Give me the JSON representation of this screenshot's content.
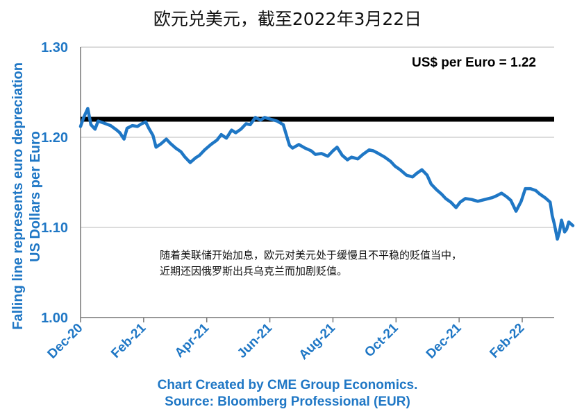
{
  "chart_data": {
    "type": "line",
    "title": "欧元兑美元，截至2022年3月22日",
    "ylabel": [
      "US Dollars per Euro",
      "Falling line represents euro depreciation"
    ],
    "xlabel": "",
    "ylim": [
      1.0,
      1.3
    ],
    "yticks": [
      "1.00",
      "1.10",
      "1.20",
      "1.30"
    ],
    "xticks": [
      "Dec-20",
      "Feb-21",
      "Apr-21",
      "Jun-21",
      "Aug-21",
      "Oct-21",
      "Dec-21",
      "Feb-22"
    ],
    "grid": "horizontal",
    "reference_line": {
      "value": 1.22,
      "label": "US$ per Euro = 1.22"
    },
    "annotation": [
      "随着美联储开始加息，欧元对美元处于缓慢且不平稳的贬值当中，",
      "近期还因俄罗斯出兵乌克兰而加剧贬值。"
    ],
    "series": [
      {
        "color": "#1f77c5",
        "points": [
          [
            "2020-12-01",
            1.212
          ],
          [
            "2020-12-04",
            1.222
          ],
          [
            "2020-12-08",
            1.232
          ],
          [
            "2020-12-11",
            1.214
          ],
          [
            "2020-12-15",
            1.209
          ],
          [
            "2020-12-18",
            1.218
          ],
          [
            "2020-12-23",
            1.216
          ],
          [
            "2020-12-30",
            1.213
          ],
          [
            "2021-01-05",
            1.208
          ],
          [
            "2021-01-08",
            1.205
          ],
          [
            "2021-01-12",
            1.198
          ],
          [
            "2021-01-15",
            1.21
          ],
          [
            "2021-01-20",
            1.213
          ],
          [
            "2021-01-25",
            1.212
          ],
          [
            "2021-01-29",
            1.215
          ],
          [
            "2021-02-02",
            1.217
          ],
          [
            "2021-02-05",
            1.21
          ],
          [
            "2021-02-09",
            1.202
          ],
          [
            "2021-02-12",
            1.189
          ],
          [
            "2021-02-17",
            1.193
          ],
          [
            "2021-02-22",
            1.198
          ],
          [
            "2021-02-26",
            1.193
          ],
          [
            "2021-03-03",
            1.188
          ],
          [
            "2021-03-08",
            1.184
          ],
          [
            "2021-03-12",
            1.178
          ],
          [
            "2021-03-17",
            1.172
          ],
          [
            "2021-03-22",
            1.177
          ],
          [
            "2021-03-26",
            1.18
          ],
          [
            "2021-03-31",
            1.186
          ],
          [
            "2021-04-06",
            1.192
          ],
          [
            "2021-04-12",
            1.197
          ],
          [
            "2021-04-16",
            1.203
          ],
          [
            "2021-04-21",
            1.199
          ],
          [
            "2021-04-26",
            1.208
          ],
          [
            "2021-04-30",
            1.205
          ],
          [
            "2021-05-05",
            1.209
          ],
          [
            "2021-05-10",
            1.215
          ],
          [
            "2021-05-14",
            1.214
          ],
          [
            "2021-05-19",
            1.222
          ],
          [
            "2021-05-24",
            1.219
          ],
          [
            "2021-05-28",
            1.222
          ],
          [
            "2021-06-03",
            1.22
          ],
          [
            "2021-06-09",
            1.218
          ],
          [
            "2021-06-15",
            1.214
          ],
          [
            "2021-06-21",
            1.191
          ],
          [
            "2021-06-24",
            1.188
          ],
          [
            "2021-06-30",
            1.192
          ],
          [
            "2021-07-06",
            1.188
          ],
          [
            "2021-07-12",
            1.185
          ],
          [
            "2021-07-16",
            1.181
          ],
          [
            "2021-07-22",
            1.182
          ],
          [
            "2021-07-28",
            1.179
          ],
          [
            "2021-08-02",
            1.185
          ],
          [
            "2021-08-06",
            1.189
          ],
          [
            "2021-08-11",
            1.18
          ],
          [
            "2021-08-16",
            1.175
          ],
          [
            "2021-08-20",
            1.178
          ],
          [
            "2021-08-26",
            1.176
          ],
          [
            "2021-08-31",
            1.181
          ],
          [
            "2021-09-06",
            1.186
          ],
          [
            "2021-09-10",
            1.185
          ],
          [
            "2021-09-15",
            1.182
          ],
          [
            "2021-09-21",
            1.178
          ],
          [
            "2021-09-27",
            1.173
          ],
          [
            "2021-10-01",
            1.168
          ],
          [
            "2021-10-06",
            1.164
          ],
          [
            "2021-10-12",
            1.158
          ],
          [
            "2021-10-18",
            1.156
          ],
          [
            "2021-10-22",
            1.16
          ],
          [
            "2021-10-27",
            1.164
          ],
          [
            "2021-11-01",
            1.158
          ],
          [
            "2021-11-05",
            1.148
          ],
          [
            "2021-11-10",
            1.142
          ],
          [
            "2021-11-15",
            1.137
          ],
          [
            "2021-11-19",
            1.132
          ],
          [
            "2021-11-24",
            1.128
          ],
          [
            "2021-11-29",
            1.122
          ],
          [
            "2021-12-03",
            1.128
          ],
          [
            "2021-12-08",
            1.132
          ],
          [
            "2021-12-14",
            1.131
          ],
          [
            "2021-12-20",
            1.129
          ],
          [
            "2021-12-27",
            1.131
          ],
          [
            "2022-01-03",
            1.133
          ],
          [
            "2022-01-07",
            1.135
          ],
          [
            "2022-01-12",
            1.138
          ],
          [
            "2022-01-17",
            1.134
          ],
          [
            "2022-01-21",
            1.13
          ],
          [
            "2022-01-26",
            1.118
          ],
          [
            "2022-01-31",
            1.129
          ],
          [
            "2022-02-04",
            1.143
          ],
          [
            "2022-02-09",
            1.143
          ],
          [
            "2022-02-14",
            1.141
          ],
          [
            "2022-02-18",
            1.137
          ],
          [
            "2022-02-23",
            1.133
          ],
          [
            "2022-02-28",
            1.128
          ],
          [
            "2022-03-02",
            1.113
          ],
          [
            "2022-03-04",
            1.104
          ],
          [
            "2022-03-07",
            1.087
          ],
          [
            "2022-03-09",
            1.095
          ],
          [
            "2022-03-11",
            1.108
          ],
          [
            "2022-03-14",
            1.095
          ],
          [
            "2022-03-16",
            1.098
          ],
          [
            "2022-03-18",
            1.106
          ],
          [
            "2022-03-22",
            1.102
          ]
        ]
      }
    ]
  },
  "footer": {
    "line1": "Chart Created by CME Group Economics.",
    "line2": "Source:  Bloomberg Professional (EUR)"
  }
}
